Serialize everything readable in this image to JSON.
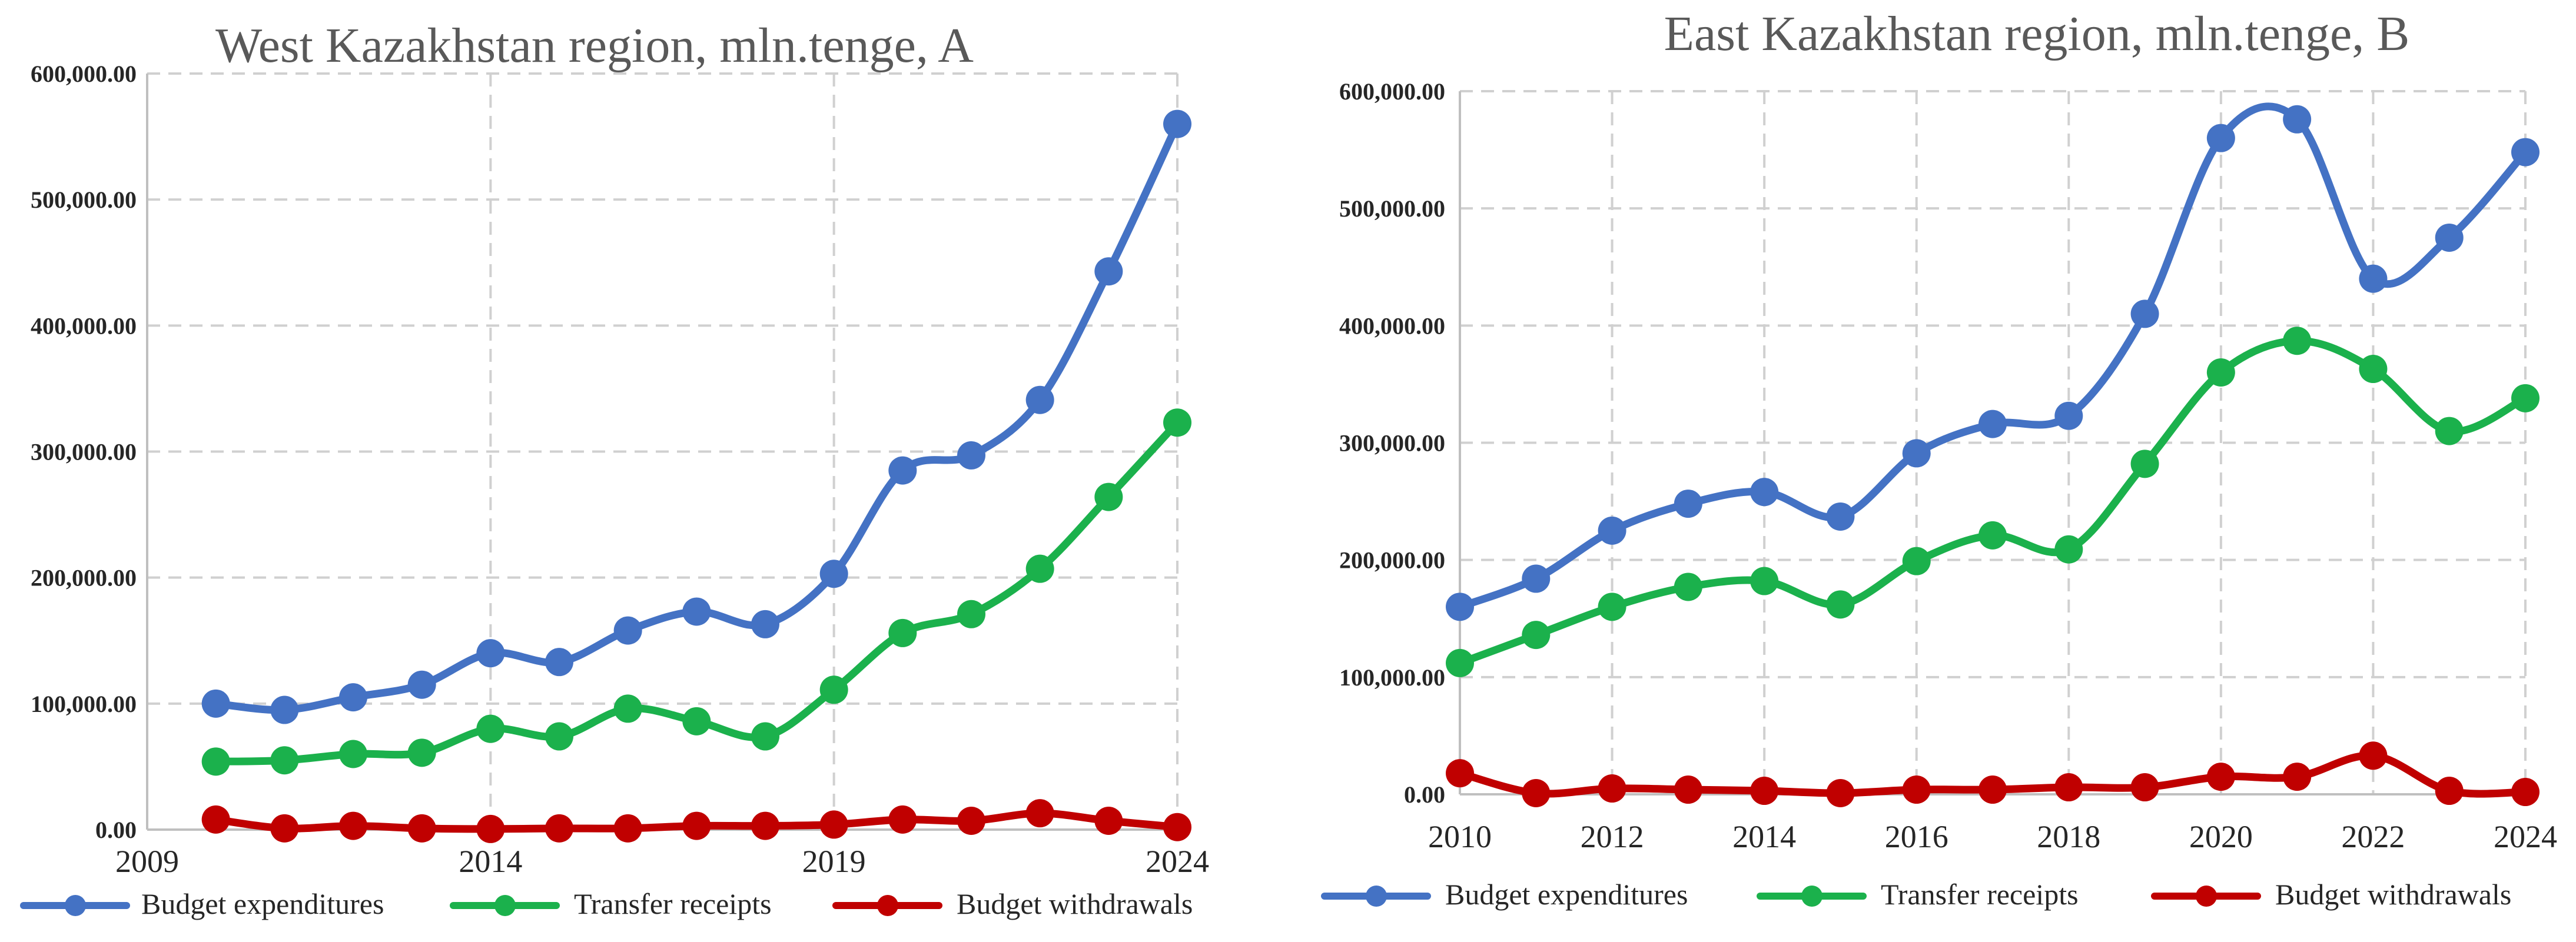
{
  "colors": {
    "budget_expenditures": "#4472C4",
    "transfer_receipts": "#1BB14C",
    "budget_withdrawals": "#C00000"
  },
  "chart_data": [
    {
      "type": "line",
      "title": "West Kazakhstan region, mln.tenge, A",
      "xlabel": "",
      "ylabel": "",
      "x": [
        2010,
        2011,
        2012,
        2013,
        2014,
        2015,
        2016,
        2017,
        2018,
        2019,
        2020,
        2021,
        2022,
        2023,
        2024
      ],
      "xlim": [
        2009,
        2024
      ],
      "x_ticks": [
        "2009",
        "2014",
        "2019",
        "2024"
      ],
      "ylim": [
        0,
        600000
      ],
      "y_ticks": [
        "0.00",
        "100,000.00",
        "200,000.00",
        "300,000.00",
        "400,000.00",
        "500,000.00",
        "600,000.00"
      ],
      "grid": true,
      "legend_position": "bottom",
      "series": [
        {
          "name": "Budget expenditures",
          "color": "#4472C4",
          "values": [
            100000,
            95000,
            105000,
            115000,
            140000,
            133000,
            158000,
            173000,
            163000,
            203000,
            285000,
            297000,
            341000,
            443000,
            560000
          ]
        },
        {
          "name": "Transfer receipts",
          "color": "#1BB14C",
          "values": [
            54000,
            55000,
            60000,
            61000,
            80000,
            74000,
            96000,
            86000,
            74000,
            111000,
            156000,
            171000,
            207000,
            264000,
            323000
          ]
        },
        {
          "name": "Budget withdrawals",
          "color": "#C00000",
          "values": [
            8000,
            1000,
            3000,
            1000,
            500,
            1000,
            1000,
            3000,
            3000,
            4000,
            8000,
            7000,
            13000,
            7000,
            2000
          ]
        }
      ]
    },
    {
      "type": "line",
      "title": "East Kazakhstan region, mln.tenge, B",
      "xlabel": "",
      "ylabel": "",
      "x": [
        2010,
        2011,
        2012,
        2013,
        2014,
        2015,
        2016,
        2017,
        2018,
        2019,
        2020,
        2021,
        2022,
        2023,
        2024
      ],
      "xlim": [
        2010,
        2024
      ],
      "x_ticks": [
        "2010",
        "2012",
        "2014",
        "2016",
        "2018",
        "2020",
        "2022",
        "2024"
      ],
      "ylim": [
        0,
        600000
      ],
      "y_ticks": [
        "0.00",
        "100,000.00",
        "200,000.00",
        "300,000.00",
        "400,000.00",
        "500,000.00",
        "600,000.00"
      ],
      "grid": true,
      "legend_position": "bottom",
      "series": [
        {
          "name": "Budget expenditures",
          "color": "#4472C4",
          "values": [
            160000,
            184000,
            225000,
            248000,
            258000,
            237000,
            291000,
            316000,
            323000,
            410000,
            560000,
            576000,
            440000,
            475000,
            548000
          ]
        },
        {
          "name": "Transfer receipts",
          "color": "#1BB14C",
          "values": [
            112000,
            136000,
            160000,
            177000,
            182000,
            162000,
            199000,
            221000,
            209000,
            282000,
            360000,
            387000,
            363000,
            310000,
            338000
          ]
        },
        {
          "name": "Budget withdrawals",
          "color": "#C00000",
          "values": [
            18000,
            1000,
            5000,
            4000,
            3000,
            1000,
            4000,
            4000,
            6000,
            6000,
            15000,
            15000,
            33000,
            3000,
            2000
          ]
        }
      ]
    }
  ]
}
